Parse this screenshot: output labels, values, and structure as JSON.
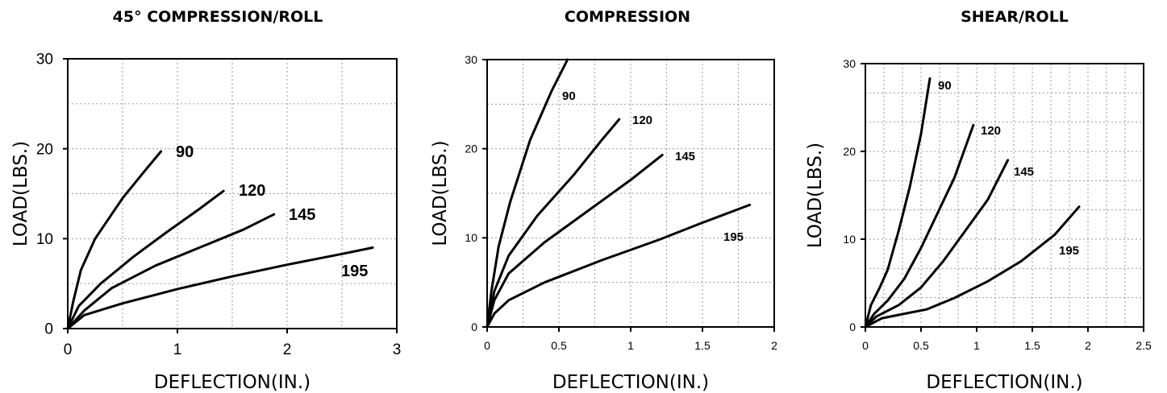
{
  "chart_data": [
    {
      "type": "line",
      "title": "45° COMPRESSION/ROLL",
      "xlabel": "DEFLECTION(IN.)",
      "ylabel": "LOAD(LBS.)",
      "xlim": [
        0,
        3
      ],
      "ylim": [
        0,
        30
      ],
      "x_ticks": [
        0,
        1,
        2,
        3
      ],
      "y_ticks": [
        0,
        10,
        20,
        30
      ],
      "grid": true,
      "series": [
        {
          "name": "90",
          "x": [
            0,
            0.05,
            0.12,
            0.25,
            0.5,
            0.7,
            0.85
          ],
          "y": [
            0,
            3,
            6.5,
            10,
            14.5,
            17.5,
            19.7
          ]
        },
        {
          "name": "120",
          "x": [
            0,
            0.1,
            0.3,
            0.6,
            0.9,
            1.2,
            1.42
          ],
          "y": [
            0,
            2.5,
            5,
            8,
            10.7,
            13.3,
            15.3
          ]
        },
        {
          "name": "145",
          "x": [
            0,
            0.15,
            0.4,
            0.8,
            1.2,
            1.6,
            1.88
          ],
          "y": [
            0,
            2,
            4.5,
            7,
            9,
            11,
            12.7
          ]
        },
        {
          "name": "195",
          "x": [
            0,
            0.15,
            0.5,
            1,
            1.5,
            2,
            2.5,
            2.78
          ],
          "y": [
            0,
            1.5,
            2.8,
            4.4,
            5.8,
            7.1,
            8.3,
            9
          ]
        }
      ]
    },
    {
      "type": "line",
      "title": "COMPRESSION",
      "xlabel": "DEFLECTION(IN.)",
      "ylabel": "LOAD(LBS.)",
      "xlim": [
        0,
        2
      ],
      "ylim": [
        0,
        30
      ],
      "x_ticks": [
        "0",
        "0.5",
        "1",
        "1.5",
        "2"
      ],
      "y_ticks": [
        0,
        10,
        20,
        30
      ],
      "grid": true,
      "series": [
        {
          "name": "90",
          "x": [
            0,
            0.03,
            0.08,
            0.16,
            0.3,
            0.45,
            0.56
          ],
          "y": [
            0,
            4,
            9,
            14,
            21,
            26.5,
            30
          ]
        },
        {
          "name": "120",
          "x": [
            0,
            0.05,
            0.15,
            0.35,
            0.6,
            0.8,
            0.92
          ],
          "y": [
            0,
            4,
            8,
            12.5,
            17,
            21,
            23.3
          ]
        },
        {
          "name": "145",
          "x": [
            0,
            0.05,
            0.15,
            0.4,
            0.7,
            1,
            1.22
          ],
          "y": [
            0,
            3,
            6,
            9.5,
            13,
            16.5,
            19.3
          ]
        },
        {
          "name": "195",
          "x": [
            0,
            0.05,
            0.15,
            0.4,
            0.8,
            1.2,
            1.5,
            1.83
          ],
          "y": [
            0,
            1.5,
            3,
            5,
            7.5,
            9.8,
            11.7,
            13.7
          ]
        }
      ]
    },
    {
      "type": "line",
      "title": "SHEAR/ROLL",
      "xlabel": "DEFLECTION(IN.)",
      "ylabel": "LOAD(LBS.)",
      "xlim": [
        0,
        2.5
      ],
      "ylim": [
        0,
        30
      ],
      "x_ticks": [
        "0",
        "0.5",
        "1",
        "1.5",
        "2",
        "2.5"
      ],
      "y_ticks": [
        0,
        10,
        20,
        30
      ],
      "grid": true,
      "series": [
        {
          "name": "90",
          "x": [
            0,
            0.05,
            0.13,
            0.2,
            0.3,
            0.4,
            0.5,
            0.58
          ],
          "y": [
            0,
            2.5,
            4.5,
            6.5,
            11,
            16,
            22,
            28.3
          ]
        },
        {
          "name": "120",
          "x": [
            0,
            0.08,
            0.2,
            0.35,
            0.5,
            0.65,
            0.8,
            0.97
          ],
          "y": [
            0,
            1.5,
            3,
            5.5,
            9,
            13,
            17,
            23
          ]
        },
        {
          "name": "145",
          "x": [
            0,
            0.1,
            0.3,
            0.5,
            0.7,
            0.9,
            1.1,
            1.28
          ],
          "y": [
            0,
            1.2,
            2.5,
            4.5,
            7.5,
            11,
            14.5,
            19
          ]
        },
        {
          "name": "195",
          "x": [
            0,
            0.15,
            0.35,
            0.55,
            0.8,
            1.1,
            1.4,
            1.7,
            1.92
          ],
          "y": [
            0,
            1,
            1.5,
            2,
            3.3,
            5.2,
            7.5,
            10.5,
            13.7
          ]
        }
      ]
    }
  ]
}
